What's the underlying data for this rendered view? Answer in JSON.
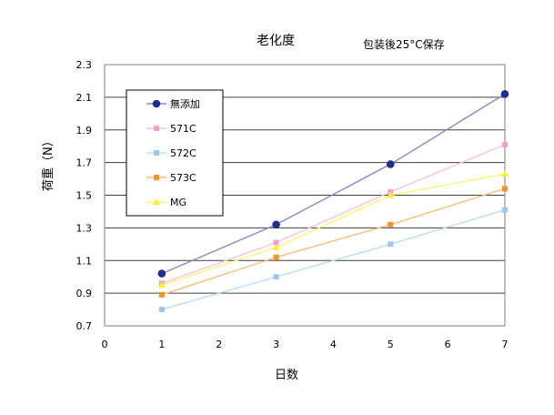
{
  "chart_data": {
    "type": "line",
    "title": "老化度",
    "subtitle": "包装後25°C保存",
    "xlabel": "日数",
    "ylabel": "荷重（N）",
    "xlim": [
      0,
      7
    ],
    "ylim": [
      0.7,
      2.3
    ],
    "x_ticks": [
      "0",
      "1",
      "2",
      "3",
      "4",
      "5",
      "6",
      "7"
    ],
    "y_ticks": [
      "0.7",
      "0.9",
      "1.1",
      "1.3",
      "1.5",
      "1.7",
      "1.9",
      "2.1",
      "2.3"
    ],
    "grid": "horizontal",
    "legend_position": "top-left inside",
    "x": [
      1,
      3,
      5,
      7
    ],
    "series": [
      {
        "name": "無添加",
        "values": [
          1.02,
          1.32,
          1.69,
          2.12
        ],
        "color": "#1f2f8f",
        "line_color": "#8a86c8",
        "marker": "circle"
      },
      {
        "name": "571C",
        "values": [
          0.96,
          1.21,
          1.52,
          1.81
        ],
        "color": "#f2a0cc",
        "line_color": "#f7c3dc",
        "marker": "square"
      },
      {
        "name": "572C",
        "values": [
          0.8,
          1.0,
          1.2,
          1.41
        ],
        "color": "#9cc8ee",
        "line_color": "#bcdcf4",
        "marker": "square"
      },
      {
        "name": "573C",
        "values": [
          0.89,
          1.12,
          1.32,
          1.54
        ],
        "color": "#f0962a",
        "line_color": "#f6bf7c",
        "marker": "square"
      },
      {
        "name": "MG",
        "values": [
          0.95,
          1.18,
          1.5,
          1.63
        ],
        "color": "#f6f030",
        "line_color": "#f9f37a",
        "marker": "triangle"
      }
    ]
  }
}
